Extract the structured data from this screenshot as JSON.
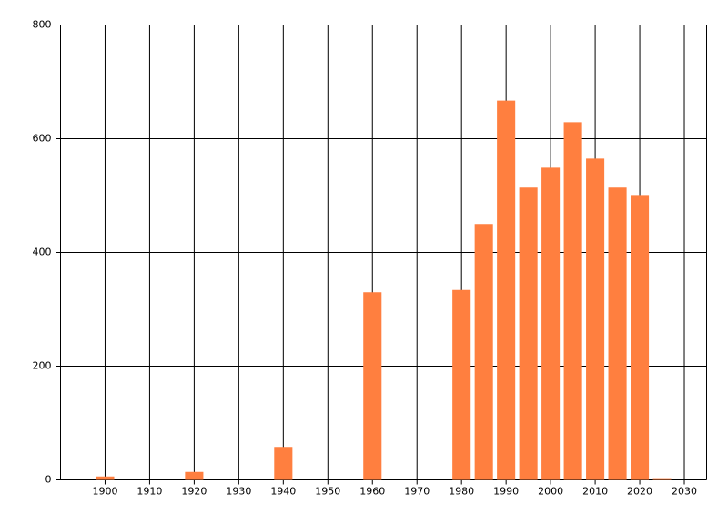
{
  "chart_data": {
    "type": "bar",
    "x": [
      1900,
      1920,
      1940,
      1960,
      1980,
      1985,
      1990,
      1995,
      2000,
      2005,
      2010,
      2015,
      2020,
      2025
    ],
    "values": [
      6,
      14,
      58,
      330,
      334,
      450,
      667,
      514,
      549,
      629,
      565,
      514,
      501,
      3
    ],
    "color": "#ff7f3f",
    "xlim": [
      1890,
      2035
    ],
    "xticks": [
      1900,
      1910,
      1920,
      1930,
      1940,
      1950,
      1960,
      1970,
      1980,
      1990,
      2000,
      2010,
      2020,
      2030
    ],
    "ylim": [
      0,
      800
    ],
    "yticks": [
      0,
      200,
      400,
      600,
      800
    ],
    "grid": true
  }
}
